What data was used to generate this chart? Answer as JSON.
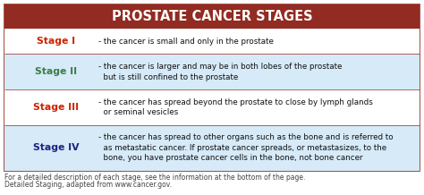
{
  "title": "PROSTATE CANCER STAGES",
  "title_bg": "#922B21",
  "title_color": "#FFFFFF",
  "border_color": "#922B21",
  "bg_color": "#FFFFFF",
  "highlight_color": "#D6EAF8",
  "stages": [
    {
      "label": "Stage I",
      "label_color": "#CC2200",
      "lines": [
        "- the cancer is small and only in the prostate"
      ],
      "bg": "#FFFFFF"
    },
    {
      "label": "Stage II",
      "label_color": "#3A7D44",
      "lines": [
        "- the cancer is larger and may be in both lobes of the prostate",
        "  but is still confined to the prostate"
      ],
      "bg": "#D6EAF8"
    },
    {
      "label": "Stage III",
      "label_color": "#CC2200",
      "lines": [
        "- the cancer has spread beyond the prostate to close by lymph glands",
        "  or seminal vesicles"
      ],
      "bg": "#FFFFFF"
    },
    {
      "label": "Stage IV",
      "label_color": "#1A237E",
      "lines": [
        "- the cancer has spread to other organs such as the bone and is referred to",
        "  as metastatic cancer. If prostate cancer spreads, or metastasizes, to the",
        "  bone, you have prostate cancer cells in the bone, not bone cancer"
      ],
      "bg": "#D6EAF8"
    }
  ],
  "footer1": "For a detailed description of each stage, see the information at the bottom of the page.",
  "footer2": "Detailed Staging, adapted from www.cancer.gov.",
  "footer_color": "#444444",
  "title_fontsize": 10.5,
  "label_fontsize": 7.8,
  "text_fontsize": 6.3,
  "footer_fontsize": 5.5
}
